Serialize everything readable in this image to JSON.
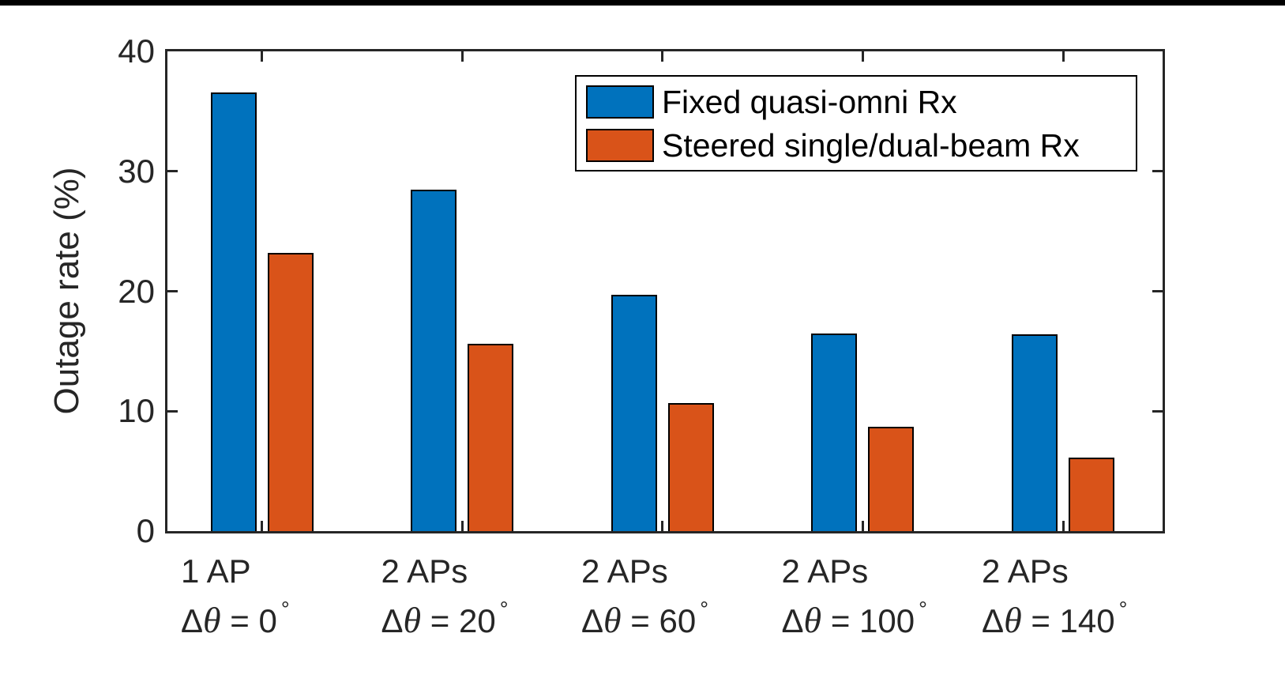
{
  "figure": {
    "background_color": "#ffffff",
    "top_strip_color": "#000000"
  },
  "chart_data": {
    "type": "bar",
    "title": "",
    "xlabel": "",
    "ylabel": "Outage rate (%)",
    "ylim": [
      0,
      40
    ],
    "yticks": [
      0,
      10,
      20,
      30,
      40
    ],
    "grid": false,
    "legend_position": "top-right-inside",
    "axis_color": "#262626",
    "bar_edge_color": "#000000",
    "theta_prefix": {
      "delta": "Δ",
      "theta": "θ",
      "eq": " = "
    },
    "degree_symbol": "°",
    "categories": [
      {
        "ap": "1 AP",
        "angle": "0"
      },
      {
        "ap": "2 APs",
        "angle": "20"
      },
      {
        "ap": "2 APs",
        "angle": "60"
      },
      {
        "ap": "2 APs",
        "angle": "100"
      },
      {
        "ap": "2 APs",
        "angle": "140"
      }
    ],
    "series": [
      {
        "name": "Fixed quasi-omni Rx",
        "color": "#0072BD",
        "values": [
          36.6,
          28.5,
          19.7,
          16.5,
          16.4
        ]
      },
      {
        "name": "Steered single/dual-beam Rx",
        "color": "#D95319",
        "values": [
          23.2,
          15.6,
          10.7,
          8.7,
          6.1
        ]
      }
    ]
  }
}
